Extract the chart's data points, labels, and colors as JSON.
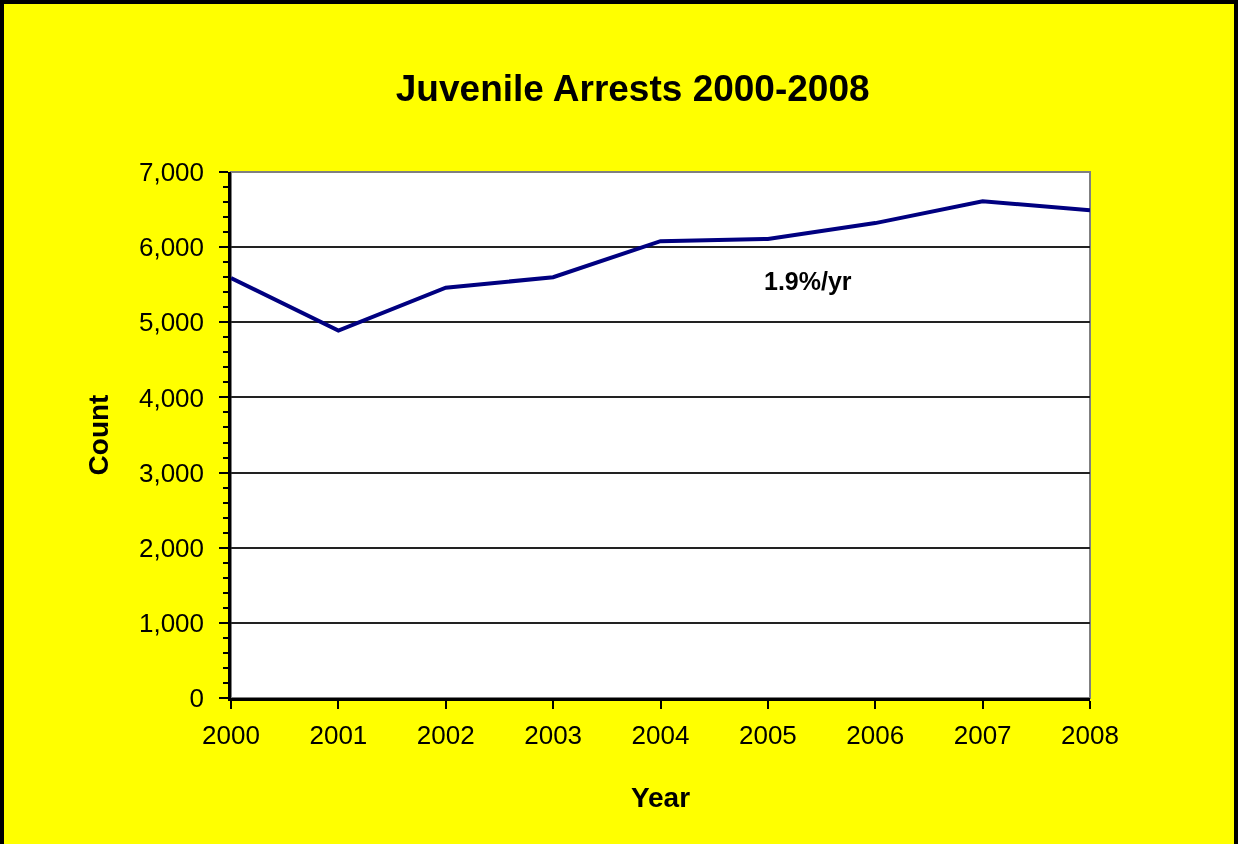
{
  "chart_data": {
    "type": "line",
    "title": "Juvenile Arrests 2000-2008",
    "xlabel": "Year",
    "ylabel": "Count",
    "x": [
      2000,
      2001,
      2002,
      2003,
      2004,
      2005,
      2006,
      2007,
      2008
    ],
    "series": [
      {
        "color": "#000080",
        "values": [
          5590,
          4890,
          5460,
          5600,
          6080,
          6110,
          6320,
          6610,
          6490
        ]
      }
    ],
    "xlim": [
      2000,
      2008
    ],
    "xticks": [
      2000,
      2001,
      2002,
      2003,
      2004,
      2005,
      2006,
      2007,
      2008
    ],
    "ylim": [
      0,
      7000
    ],
    "yticks": [
      0,
      {
        "value": 200,
        "label": null
      },
      {
        "value": 400,
        "label": null
      },
      {
        "value": 600,
        "label": null
      },
      {
        "value": 800,
        "label": null
      },
      {
        "value": 1000,
        "label": "1,000"
      },
      {
        "value": 1200,
        "label": null
      },
      {
        "value": 1400,
        "label": null
      },
      {
        "value": 1600,
        "label": null
      },
      {
        "value": 1800,
        "label": null
      },
      {
        "value": 2000,
        "label": "2,000"
      },
      {
        "value": 2200,
        "label": null
      },
      {
        "value": 2400,
        "label": null
      },
      {
        "value": 2600,
        "label": null
      },
      {
        "value": 2800,
        "label": null
      },
      {
        "value": 3000,
        "label": "3,000"
      },
      {
        "value": 3200,
        "label": null
      },
      {
        "value": 3400,
        "label": null
      },
      {
        "value": 3600,
        "label": null
      },
      {
        "value": 3800,
        "label": null
      },
      {
        "value": 4000,
        "label": "4,000"
      },
      {
        "value": 4200,
        "label": null
      },
      {
        "value": 4400,
        "label": null
      },
      {
        "value": 4600,
        "label": null
      },
      {
        "value": 4800,
        "label": null
      },
      {
        "value": 5000,
        "label": "5,000"
      },
      {
        "value": 5200,
        "label": null
      },
      {
        "value": 5400,
        "label": null
      },
      {
        "value": 5600,
        "label": null
      },
      {
        "value": 5800,
        "label": null
      },
      {
        "value": 6000,
        "label": "6,000"
      },
      {
        "value": 6200,
        "label": null
      },
      {
        "value": 6400,
        "label": null
      },
      {
        "value": 6600,
        "label": null
      },
      {
        "value": 6800,
        "label": null
      },
      {
        "value": 7000,
        "label": "7,000"
      }
    ],
    "grid": "y",
    "marker": "none",
    "line_style": "solid",
    "annotations": [
      "1.9%/yr"
    ]
  }
}
